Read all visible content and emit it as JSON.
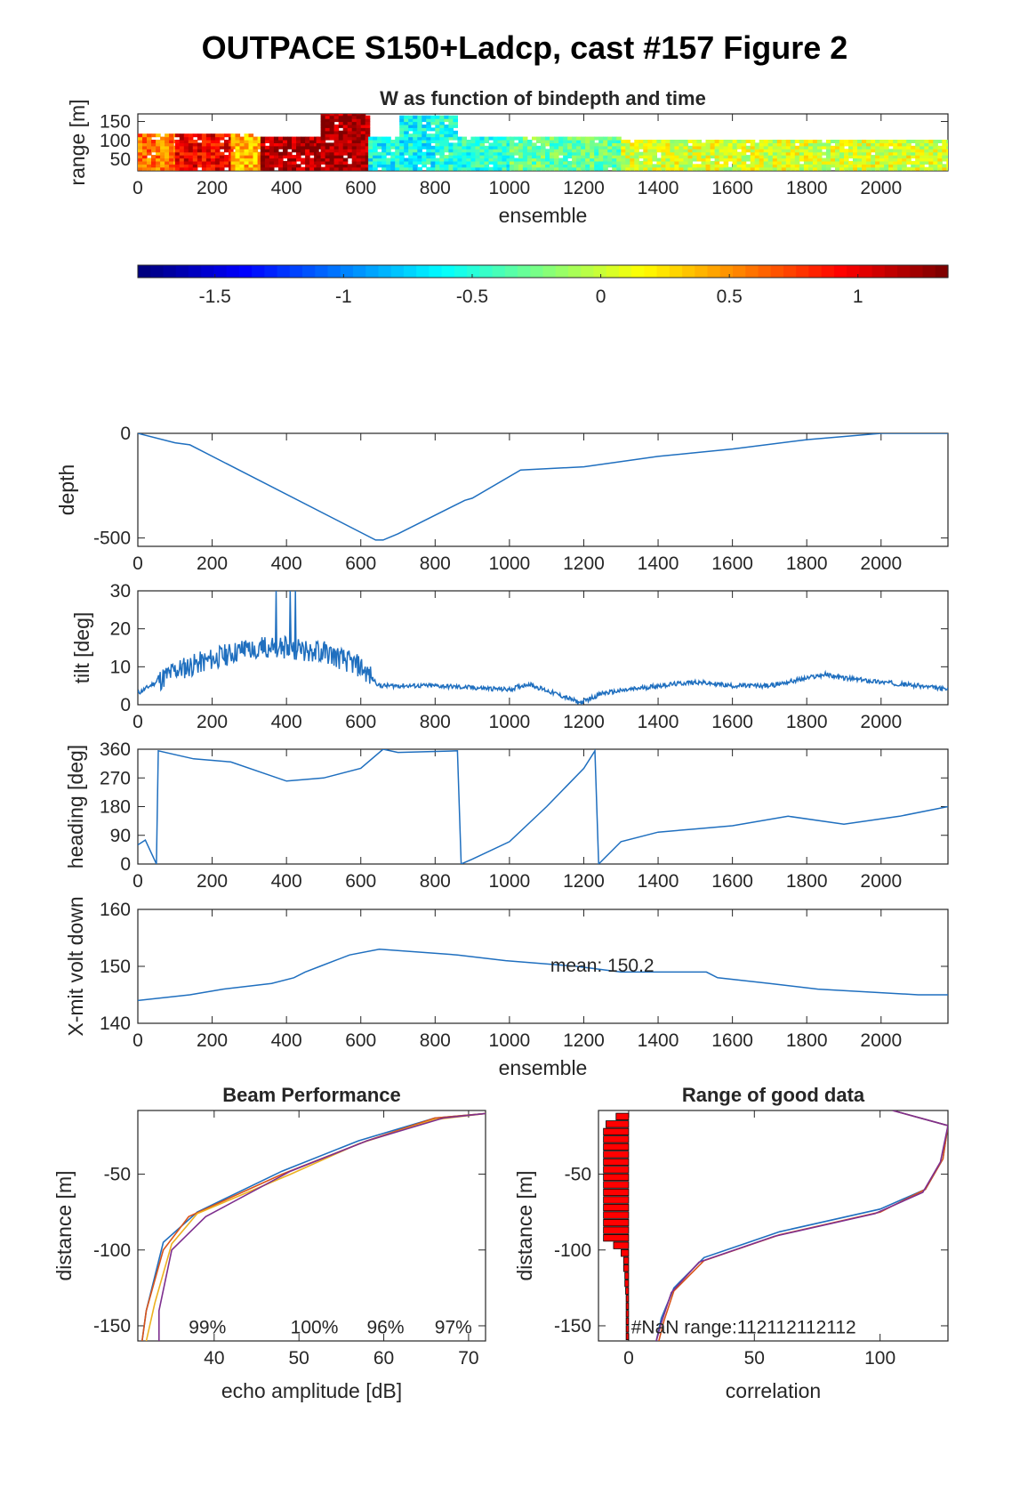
{
  "figure_title": "OUTPACE S150+Ladcp, cast #157 Figure 2",
  "colors": {
    "line": "#1f6fbf",
    "bar": "#ff0000",
    "series": [
      "#1f6fbf",
      "#d95319",
      "#edb120",
      "#7e2f8e",
      "#77ac30"
    ]
  },
  "chart_data": [
    {
      "id": "w_image",
      "type": "heatmap",
      "title": "W as function of bindepth and time",
      "xlabel": "ensemble",
      "ylabel": "range [m]",
      "xlim": [
        0,
        2180
      ],
      "ylim": [
        20,
        170
      ],
      "xticks": [
        0,
        200,
        400,
        600,
        800,
        1000,
        1200,
        1400,
        1600,
        1800,
        2000
      ],
      "yticks": [
        50,
        100,
        150
      ],
      "colorbar": {
        "range": [
          -1.8,
          1.35
        ],
        "ticks": [
          -1.5,
          -1,
          -0.5,
          0,
          0.5,
          1
        ],
        "ticklabels": [
          "-1.5",
          "-1",
          "-0.5",
          "0",
          "0.5",
          "1"
        ]
      },
      "segments": [
        {
          "x": [
            0,
            100
          ],
          "w": 0.6
        },
        {
          "x": [
            100,
            250
          ],
          "w": 1.0
        },
        {
          "x": [
            250,
            330
          ],
          "w": 0.4
        },
        {
          "x": [
            330,
            480
          ],
          "w": 1.2
        },
        {
          "x": [
            480,
            620
          ],
          "w": 1.25
        },
        {
          "x": [
            620,
            800
          ],
          "w": -0.6
        },
        {
          "x": [
            800,
            1000
          ],
          "w": -0.5
        },
        {
          "x": [
            1000,
            1300
          ],
          "w": -0.3
        },
        {
          "x": [
            1300,
            2180
          ],
          "w": 0.05
        }
      ]
    },
    {
      "id": "depth",
      "type": "line",
      "ylabel": "depth",
      "xlim": [
        0,
        2180
      ],
      "ylim": [
        -540,
        0
      ],
      "xticks": [
        0,
        200,
        400,
        600,
        800,
        1000,
        1200,
        1400,
        1600,
        1800,
        2000
      ],
      "yticks": [
        0,
        -500
      ],
      "yticklabels": [
        "0",
        "-500"
      ],
      "x": [
        0,
        100,
        140,
        640,
        660,
        700,
        880,
        900,
        1030,
        1200,
        1400,
        1600,
        1800,
        2000,
        2180
      ],
      "y": [
        0,
        -45,
        -55,
        -510,
        -510,
        -480,
        -320,
        -310,
        -175,
        -160,
        -110,
        -75,
        -30,
        0,
        0
      ]
    },
    {
      "id": "tilt",
      "type": "line",
      "ylabel": "tilt [deg]",
      "xlim": [
        0,
        2180
      ],
      "ylim": [
        0,
        30
      ],
      "xticks": [
        0,
        200,
        400,
        600,
        800,
        1000,
        1200,
        1400,
        1600,
        1800,
        2000
      ],
      "yticks": [
        0,
        10,
        20,
        30
      ],
      "x": [
        0,
        100,
        200,
        300,
        400,
        500,
        600,
        650,
        800,
        1000,
        1050,
        1150,
        1190,
        1250,
        1400,
        1500,
        1600,
        1700,
        1800,
        1850,
        1900,
        2000,
        2100,
        2180
      ],
      "y": [
        3,
        9,
        12,
        15,
        15,
        14,
        10,
        5,
        5,
        4,
        5.5,
        2,
        0.5,
        3,
        5,
        6,
        5,
        5,
        7,
        8,
        7,
        6,
        5,
        4
      ]
    },
    {
      "id": "heading",
      "type": "line",
      "ylabel": "heading [deg]",
      "xlim": [
        0,
        2180
      ],
      "ylim": [
        0,
        360
      ],
      "xticks": [
        0,
        200,
        400,
        600,
        800,
        1000,
        1200,
        1400,
        1600,
        1800,
        2000
      ],
      "yticks": [
        0,
        90,
        180,
        270,
        360
      ],
      "x": [
        0,
        20,
        50,
        55,
        150,
        250,
        400,
        500,
        600,
        660,
        700,
        860,
        870,
        900,
        1000,
        1100,
        1200,
        1230,
        1240,
        1300,
        1400,
        1500,
        1600,
        1750,
        1900,
        2050,
        2180
      ],
      "y": [
        60,
        75,
        0,
        355,
        330,
        320,
        260,
        270,
        300,
        360,
        350,
        355,
        0,
        15,
        70,
        180,
        300,
        355,
        0,
        70,
        100,
        110,
        120,
        150,
        125,
        150,
        180
      ]
    },
    {
      "id": "xmit_volt",
      "type": "line",
      "ylabel": "X-mit volt down",
      "xlabel": "ensemble",
      "annotation": "mean: 150.2",
      "xlim": [
        0,
        2180
      ],
      "ylim": [
        140,
        160
      ],
      "xticks": [
        0,
        200,
        400,
        600,
        800,
        1000,
        1200,
        1400,
        1600,
        1800,
        2000
      ],
      "yticks": [
        140,
        150,
        160
      ],
      "x": [
        0,
        140,
        230,
        360,
        420,
        450,
        490,
        530,
        570,
        650,
        860,
        990,
        1180,
        1300,
        1530,
        1560,
        1700,
        1830,
        2100,
        2180
      ],
      "y": [
        144,
        145,
        146,
        147,
        148,
        149,
        150,
        151,
        152,
        153,
        152,
        151,
        150,
        149,
        149,
        148,
        147,
        146,
        145,
        145
      ]
    },
    {
      "id": "beam_performance",
      "type": "line",
      "title": "Beam Performance",
      "xlabel": "echo amplitude [dB]",
      "ylabel": "distance [m]",
      "xlim": [
        31,
        72
      ],
      "ylim": [
        -160,
        -8
      ],
      "xticks": [
        40,
        50,
        60,
        70
      ],
      "yticks": [
        -50,
        -100,
        -150
      ],
      "annotations": [
        "99%",
        "100%",
        "96%",
        "97%"
      ],
      "series": [
        {
          "x": [
            72,
            66,
            57,
            48,
            38,
            34,
            32,
            31.5
          ],
          "y": [
            -10,
            -13,
            -28,
            -48,
            -75,
            -95,
            -140,
            -160
          ]
        },
        {
          "x": [
            72,
            66,
            58,
            48,
            37,
            34,
            32,
            31.5
          ],
          "y": [
            -10,
            -13,
            -28,
            -50,
            -78,
            -100,
            -140,
            -160
          ]
        },
        {
          "x": [
            72,
            66,
            57,
            49,
            38,
            35,
            33,
            32
          ],
          "y": [
            -10,
            -14,
            -30,
            -50,
            -76,
            -96,
            -135,
            -160
          ]
        },
        {
          "x": [
            72,
            67,
            58,
            49,
            39,
            35,
            33.5,
            33.5
          ],
          "y": [
            -10,
            -13,
            -28,
            -48,
            -78,
            -100,
            -140,
            -160
          ]
        }
      ]
    },
    {
      "id": "range_good_data",
      "type": "line",
      "title": "Range of good data",
      "xlabel": "correlation",
      "ylabel": "distance [m]",
      "annotation": "#NaN range:112112112112",
      "xlim": [
        -12,
        127
      ],
      "ylim": [
        -160,
        -8
      ],
      "xticks": [
        0,
        50,
        100
      ],
      "yticks": [
        -50,
        -100,
        -150
      ],
      "series": [
        {
          "x": [
            105,
            127,
            125,
            118,
            100,
            60,
            30,
            18,
            13,
            11
          ],
          "y": [
            -8,
            -18,
            -40,
            -60,
            -73,
            -88,
            -105,
            -125,
            -145,
            -160
          ]
        },
        {
          "x": [
            105,
            127,
            125,
            118,
            100,
            60,
            30,
            18,
            14,
            12
          ],
          "y": [
            -8,
            -18,
            -40,
            -60,
            -75,
            -90,
            -107,
            -127,
            -147,
            -160
          ]
        },
        {
          "x": [
            105,
            127,
            124,
            117,
            98,
            58,
            28,
            17,
            13,
            11
          ],
          "y": [
            -8,
            -18,
            -42,
            -62,
            -76,
            -91,
            -108,
            -128,
            -148,
            -160
          ]
        }
      ],
      "bars": {
        "y": [
          -12,
          -17,
          -22,
          -27,
          -32,
          -37,
          -42,
          -47,
          -52,
          -57,
          -62,
          -67,
          -72,
          -77,
          -82,
          -87,
          -92,
          -97,
          -102,
          -107,
          -112,
          -117,
          -122,
          -127,
          -132,
          -137,
          -142,
          -147,
          -152,
          -157
        ],
        "len": [
          -5,
          -9,
          -10,
          -10,
          -10,
          -10,
          -10,
          -10,
          -10,
          -10,
          -10,
          -10,
          -10,
          -10,
          -10,
          -10,
          -10,
          -6,
          -3,
          -2,
          -2,
          -1.5,
          -1.5,
          -1.2,
          -1,
          -1,
          -1,
          -1,
          -1,
          -1
        ]
      }
    }
  ]
}
